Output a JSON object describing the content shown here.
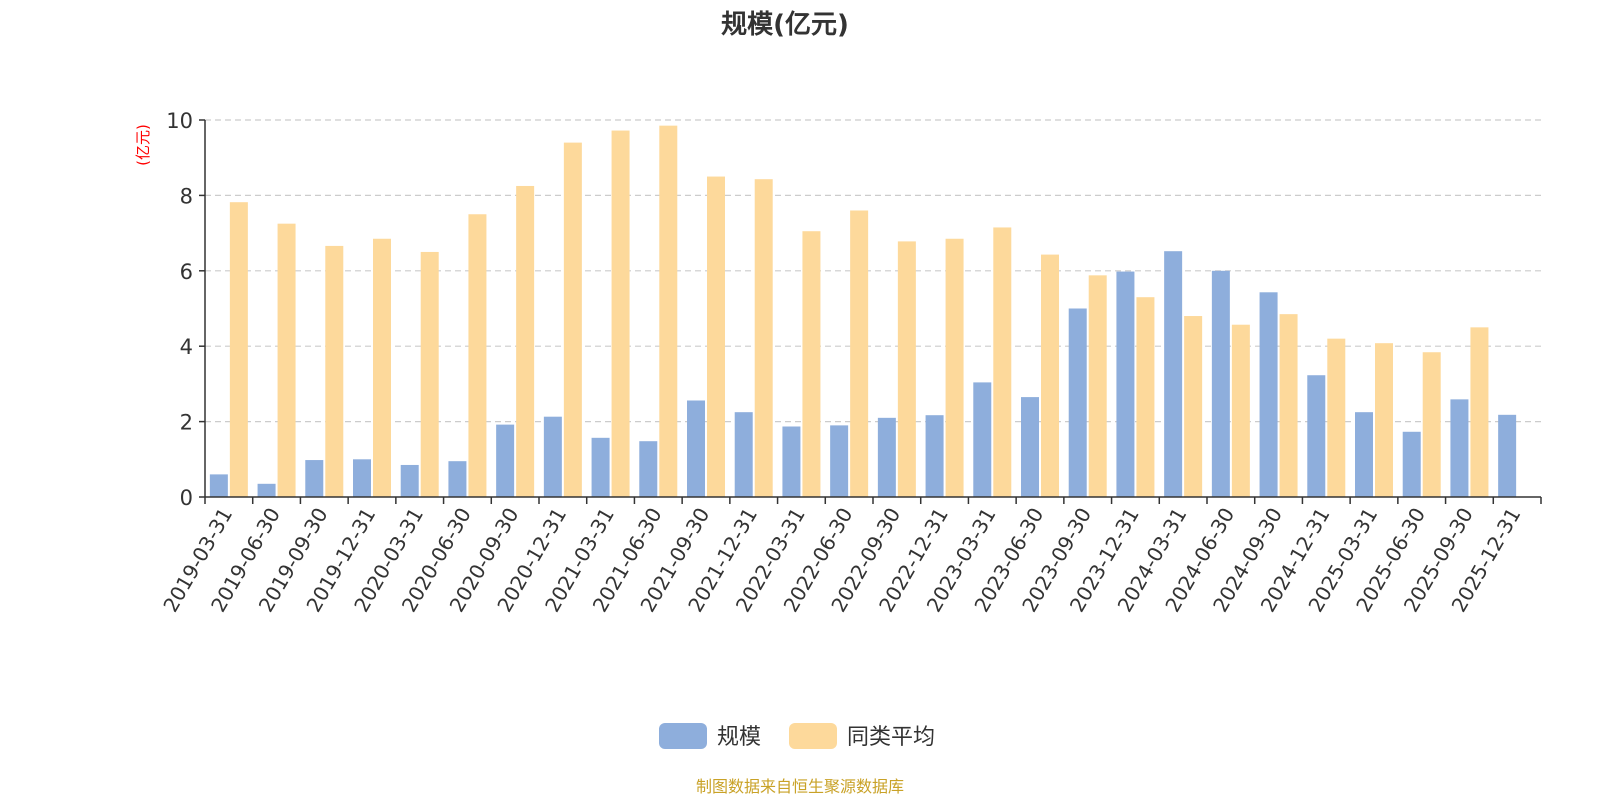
{
  "chart_data": {
    "type": "bar",
    "title": "规模(亿元)",
    "ylabel": "(亿元)",
    "ylim": [
      0,
      10
    ],
    "yticks": [
      0,
      2,
      4,
      6,
      8,
      10
    ],
    "grid": true,
    "legend_position": "bottom",
    "categories": [
      "2019-03-31",
      "2019-06-30",
      "2019-09-30",
      "2019-12-31",
      "2020-03-31",
      "2020-06-30",
      "2020-09-30",
      "2020-12-31",
      "2021-03-31",
      "2021-06-30",
      "2021-09-30",
      "2021-12-31",
      "2022-03-31",
      "2022-06-30",
      "2022-09-30",
      "2022-12-31",
      "2023-03-31",
      "2023-06-30",
      "2023-09-30",
      "2023-12-31",
      "2024-03-31",
      "2024-06-30",
      "2024-09-30",
      "2024-12-31",
      "2025-03-31",
      "2025-06-30",
      "2025-09-30",
      "2025-12-31"
    ],
    "series": [
      {
        "name": "规模",
        "color": "#8eaedc",
        "values": [
          0.6,
          0.35,
          0.98,
          1.0,
          0.85,
          0.95,
          1.92,
          2.13,
          1.57,
          1.48,
          2.56,
          2.25,
          1.87,
          1.9,
          2.1,
          2.17,
          3.04,
          2.65,
          5.0,
          5.98,
          6.52,
          6.0,
          5.43,
          3.23,
          2.25,
          1.73,
          2.59,
          2.18
        ]
      },
      {
        "name": "同类平均",
        "color": "#fdd99b",
        "values": [
          7.82,
          7.25,
          6.66,
          6.85,
          6.5,
          7.5,
          8.25,
          9.4,
          9.72,
          9.85,
          8.5,
          8.43,
          7.05,
          7.6,
          6.78,
          6.85,
          7.15,
          6.43,
          5.88,
          5.3,
          4.8,
          4.57,
          4.85,
          4.2,
          4.08,
          3.84,
          4.5,
          null
        ]
      }
    ],
    "footer": "制图数据来自恒生聚源数据库"
  },
  "colors": {
    "title": "#333333",
    "axis": "#333333",
    "grid": "#cccccc",
    "ylabel": "#ff0000",
    "footer": "#c9a227"
  }
}
